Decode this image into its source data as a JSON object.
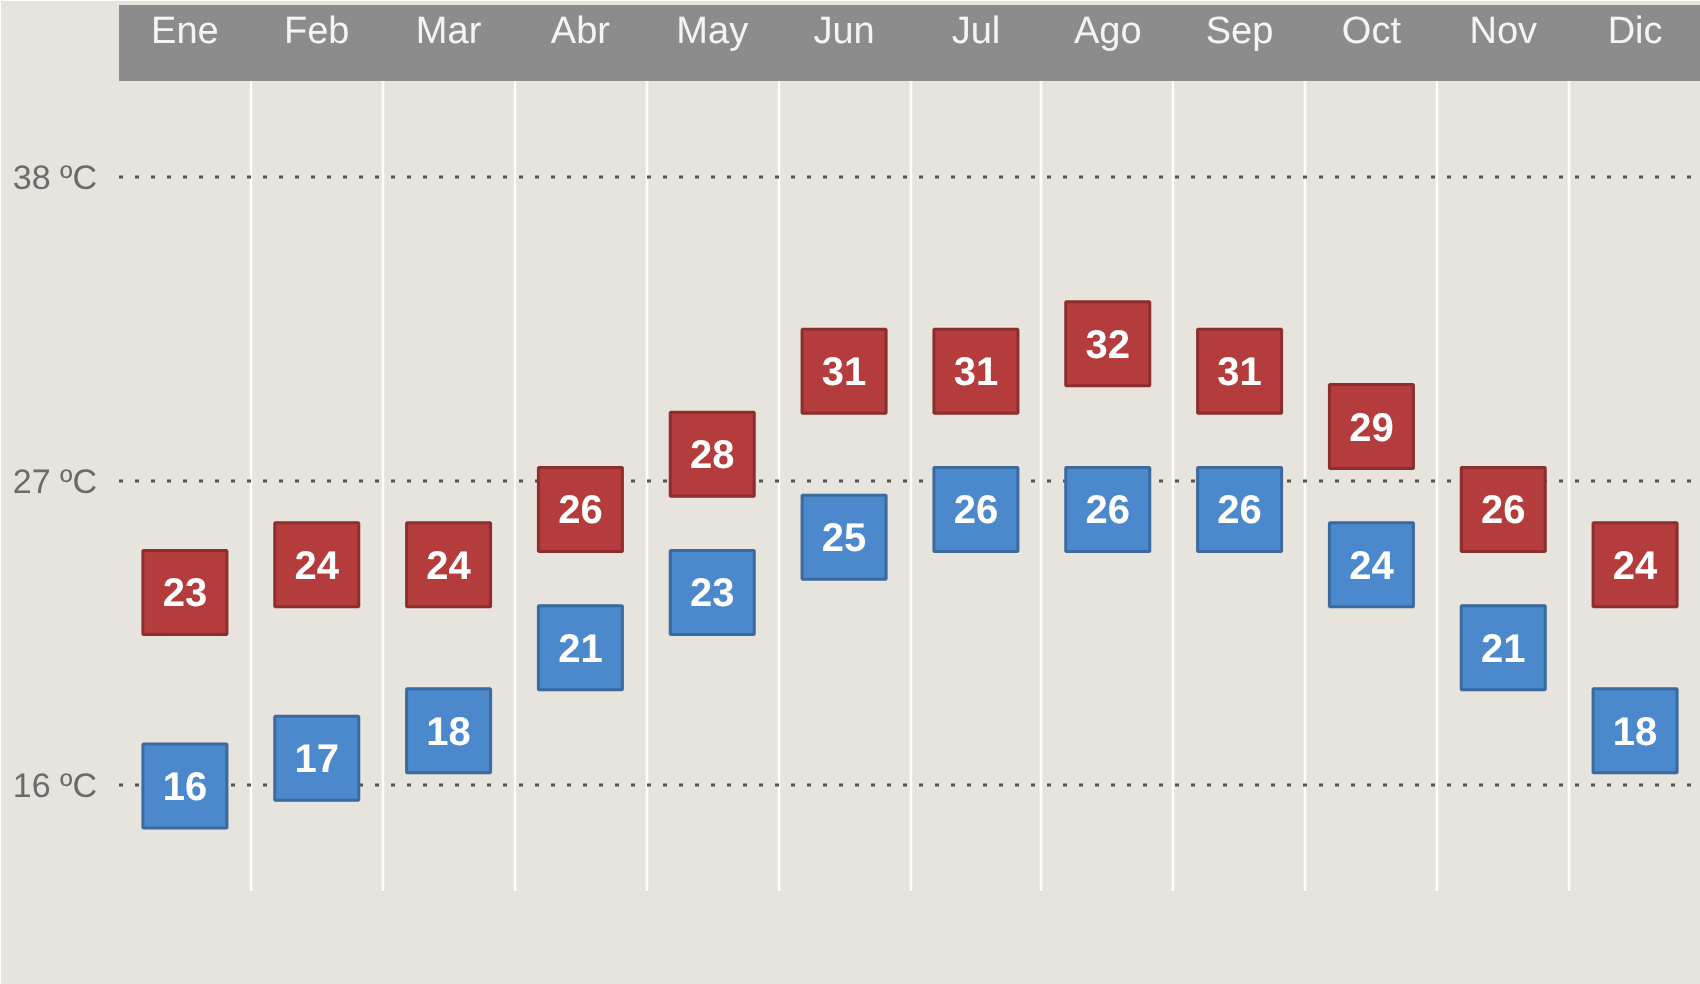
{
  "chart_data": {
    "type": "scatter",
    "categories": [
      "Ene",
      "Feb",
      "Mar",
      "Abr",
      "May",
      "Jun",
      "Jul",
      "Ago",
      "Sep",
      "Oct",
      "Nov",
      "Dic"
    ],
    "series": [
      {
        "color": "#b43c3c",
        "values": [
          23,
          24,
          24,
          26,
          28,
          31,
          31,
          32,
          31,
          29,
          26,
          24
        ]
      },
      {
        "color": "#4b89cc",
        "values": [
          16,
          17,
          18,
          21,
          23,
          25,
          26,
          26,
          26,
          24,
          21,
          18
        ]
      }
    ],
    "ylim": [
      12.2,
      41.5
    ],
    "yticks": [
      {
        "value": 16,
        "label": "16 ºC"
      },
      {
        "value": 27,
        "label": "27 ºC"
      },
      {
        "value": 38,
        "label": "38 ºC"
      }
    ],
    "grid": true,
    "marker": "square",
    "data_labels": true
  }
}
